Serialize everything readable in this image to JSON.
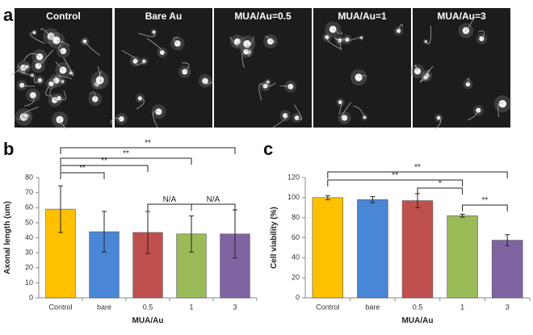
{
  "panel_labels": [
    "a",
    "b",
    "c"
  ],
  "image_titles": [
    "Control",
    "Bare Au",
    "MUA/Au=0.5",
    "MUA/Au=1",
    "MUA/Au=3"
  ],
  "chart_data": [
    {
      "type": "bar",
      "y_label": "Axonal length (um)",
      "x_label": "MUA/Au",
      "categories": [
        "Control",
        "bare",
        "0.5",
        "1",
        "3"
      ],
      "values": [
        59,
        44,
        43.5,
        42.5,
        42.5
      ],
      "errors": [
        15.5,
        13.5,
        14,
        12,
        16
      ],
      "colors": [
        "#ffc000",
        "#4a86d6",
        "#c0504d",
        "#9bbb59",
        "#8064a2"
      ],
      "ylim": [
        0,
        80
      ],
      "yticks": [
        0,
        10,
        20,
        30,
        40,
        50,
        60,
        70,
        80
      ],
      "annotations": [
        "**",
        "**",
        "**",
        "**",
        "N/A",
        "N/A"
      ]
    },
    {
      "type": "bar",
      "y_label": "Cell viability (%)",
      "x_label": "MUA/Au",
      "categories": [
        "Control",
        "bare",
        "0.5",
        "1",
        "3"
      ],
      "values": [
        100,
        98,
        97,
        82,
        57.5
      ],
      "errors": [
        2,
        3,
        7,
        1.5,
        5.5
      ],
      "colors": [
        "#ffc000",
        "#4a86d6",
        "#c0504d",
        "#9bbb59",
        "#8064a2"
      ],
      "ylim": [
        0,
        120
      ],
      "yticks": [
        0,
        20,
        40,
        60,
        80,
        100,
        120
      ],
      "annotations": [
        "**",
        "**",
        "*",
        "**"
      ]
    }
  ]
}
